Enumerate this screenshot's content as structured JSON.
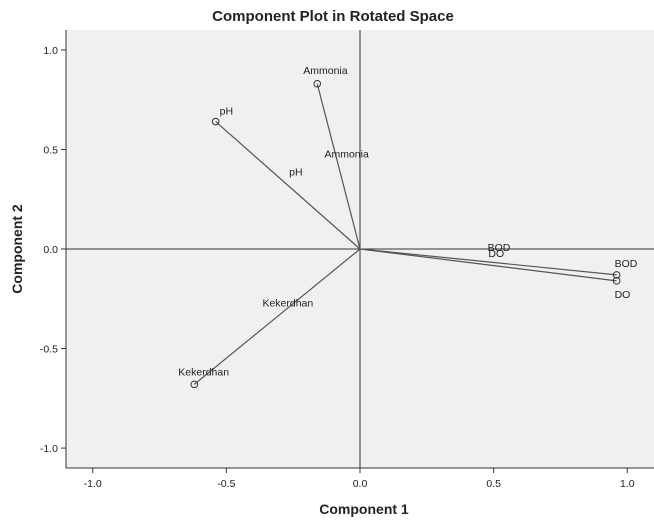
{
  "chart_data": {
    "type": "scatter",
    "title": "Component Plot in Rotated Space",
    "xlabel": "Component 1",
    "ylabel": "Component 2",
    "xlim": [
      -1.1,
      1.1
    ],
    "ylim": [
      -1.1,
      1.1
    ],
    "xticks": [
      "-1.0",
      "-0.5",
      "0.0",
      "0.5",
      "1.0"
    ],
    "yticks": [
      "1.0",
      "0.5",
      "0.0",
      "-0.5",
      "-1.0"
    ],
    "grid": false,
    "points": [
      {
        "label": "Ammonia",
        "x": -0.16,
        "y": 0.83
      },
      {
        "label": "pH",
        "x": -0.54,
        "y": 0.64
      },
      {
        "label": "BOD",
        "x": 0.96,
        "y": -0.13
      },
      {
        "label": "DO",
        "x": 0.96,
        "y": -0.16
      },
      {
        "label": "Kekerdhan",
        "x": -0.62,
        "y": -0.68
      }
    ],
    "ray_labels": [
      {
        "label": "Ammonia",
        "x": -0.05,
        "y": 0.46
      },
      {
        "label": "pH",
        "x": -0.24,
        "y": 0.37
      },
      {
        "label": "BOD",
        "x": 0.52,
        "y": -0.01
      },
      {
        "label": "DO",
        "x": 0.51,
        "y": -0.04
      },
      {
        "label": "Kekerdhan",
        "x": -0.27,
        "y": -0.29
      }
    ],
    "colors": {
      "plot_background": "#f0f0f0",
      "lines": "#555555",
      "frame": "#333333"
    }
  }
}
